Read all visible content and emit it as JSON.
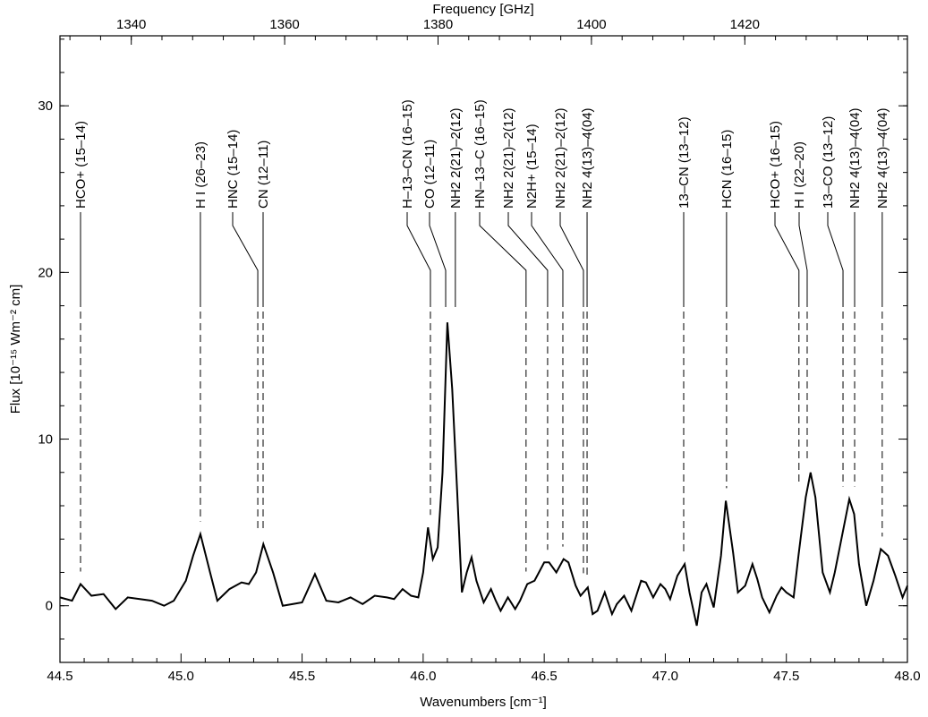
{
  "chart_data": {
    "type": "line",
    "x_label": "Wavenumbers [cm⁻¹]",
    "y_label": "Flux [10⁻¹⁵ Wm⁻² cm]",
    "x2_label": "Frequency [GHz]",
    "xlim": [
      44.5,
      48.0
    ],
    "xticks": [
      {
        "value": 44.5,
        "label": "44.5"
      },
      {
        "value": 45.0,
        "label": "45.0"
      },
      {
        "value": 45.5,
        "label": "45.5"
      },
      {
        "value": 46.0,
        "label": "46.0"
      },
      {
        "value": 46.5,
        "label": "46.5"
      },
      {
        "value": 47.0,
        "label": "47.0"
      },
      {
        "value": 47.5,
        "label": "47.5"
      },
      {
        "value": 48.0,
        "label": "48.0"
      }
    ],
    "x2lim": [
      1330.7,
      1441.2
    ],
    "x2ticks": [
      1340,
      1360,
      1380,
      1400,
      1420
    ],
    "ylim": [
      -3.4,
      34.2
    ],
    "yticks": [
      0,
      10,
      20,
      30
    ],
    "series": [
      {
        "name": "Flux",
        "color": "#000000",
        "x": [
          44.5,
          44.55,
          44.585,
          44.63,
          44.68,
          44.73,
          44.78,
          44.83,
          44.88,
          44.93,
          44.97,
          45.02,
          45.05,
          45.08,
          45.12,
          45.15,
          45.2,
          45.25,
          45.28,
          45.31,
          45.34,
          45.38,
          45.42,
          45.46,
          45.5,
          45.553,
          45.6,
          45.65,
          45.7,
          45.75,
          45.8,
          45.85,
          45.88,
          45.915,
          45.95,
          45.98,
          46.0,
          46.02,
          46.04,
          46.06,
          46.08,
          46.1,
          46.12,
          46.14,
          46.16,
          46.18,
          46.2,
          46.22,
          46.25,
          46.28,
          46.3,
          46.32,
          46.35,
          46.38,
          46.4,
          46.43,
          46.46,
          46.5,
          46.52,
          46.55,
          46.58,
          46.6,
          46.63,
          46.65,
          46.68,
          46.7,
          46.72,
          46.75,
          46.78,
          46.8,
          46.83,
          46.86,
          46.9,
          46.92,
          46.95,
          46.98,
          47.0,
          47.02,
          47.05,
          47.08,
          47.1,
          47.13,
          47.15,
          47.17,
          47.2,
          47.23,
          47.25,
          47.28,
          47.3,
          47.33,
          47.36,
          47.38,
          47.4,
          47.43,
          47.46,
          47.48,
          47.5,
          47.53,
          47.55,
          47.58,
          47.6,
          47.62,
          47.65,
          47.68,
          47.7,
          47.73,
          47.76,
          47.78,
          47.8,
          47.83,
          47.86,
          47.89,
          47.92,
          47.95,
          47.98,
          48.0
        ],
        "values": [
          0.5,
          0.3,
          1.3,
          0.6,
          0.7,
          -0.2,
          0.5,
          0.4,
          0.3,
          0.0,
          0.3,
          1.5,
          3.0,
          4.3,
          2.0,
          0.3,
          1.0,
          1.4,
          1.3,
          2.0,
          3.7,
          2.0,
          0.0,
          0.1,
          0.2,
          1.9,
          0.3,
          0.2,
          0.5,
          0.1,
          0.6,
          0.5,
          0.4,
          1.0,
          0.6,
          0.5,
          2.0,
          4.7,
          2.8,
          3.5,
          8.0,
          17.0,
          13.0,
          7.0,
          0.8,
          2.0,
          2.9,
          1.5,
          0.2,
          1.0,
          0.3,
          -0.3,
          0.5,
          -0.2,
          0.3,
          1.3,
          1.5,
          2.6,
          2.6,
          2.0,
          2.8,
          2.6,
          1.2,
          0.6,
          1.1,
          -0.5,
          -0.3,
          0.8,
          -0.5,
          0.1,
          0.6,
          -0.3,
          1.5,
          1.4,
          0.5,
          1.3,
          1.0,
          0.4,
          1.8,
          2.5,
          0.8,
          -1.2,
          0.8,
          1.3,
          -0.1,
          3.0,
          6.3,
          3.2,
          0.8,
          1.2,
          2.5,
          1.6,
          0.5,
          -0.4,
          0.6,
          1.1,
          0.8,
          0.5,
          3.0,
          6.5,
          8.0,
          6.5,
          2.0,
          0.8,
          2.0,
          4.2,
          6.4,
          5.5,
          2.5,
          0.0,
          1.5,
          3.4,
          3.0,
          1.8,
          0.5,
          1.2
        ]
      }
    ],
    "line_ids": [
      {
        "label": "HCO+ (15–14)",
        "x": 44.585
      },
      {
        "label": "H I (26–23)",
        "x": 45.08
      },
      {
        "label": "HNC (15–14)",
        "x": 45.317
      },
      {
        "label": "CN (12–11)",
        "x": 45.339
      },
      {
        "label": "H–13–CN (16–15)",
        "x": 46.03
      },
      {
        "label": "CO (12–11)",
        "x": 46.093
      },
      {
        "label": "NH2 2(21)–2(12)",
        "x": 46.133
      },
      {
        "label": "HN–13–C (16–15)",
        "x": 46.425
      },
      {
        "label": "NH2 2(21)–2(12)",
        "x": 46.514
      },
      {
        "label": "N2H+ (15–14)",
        "x": 46.577
      },
      {
        "label": "NH2 2(21)–2(12)",
        "x": 46.662
      },
      {
        "label": "NH2 4(13)–4(04)",
        "x": 46.677
      },
      {
        "label": "13–CN (13–12)",
        "x": 47.076
      },
      {
        "label": "HCN (16–15)",
        "x": 47.253
      },
      {
        "label": "HCO+ (16–15)",
        "x": 47.552
      },
      {
        "label": "H I (22–20)",
        "x": 47.586
      },
      {
        "label": "13–CO (13–12)",
        "x": 47.734
      },
      {
        "label": "NH2 4(13)–4(04)",
        "x": 47.782
      },
      {
        "label": "NH2 4(13)–4(04)",
        "x": 47.896
      }
    ]
  }
}
